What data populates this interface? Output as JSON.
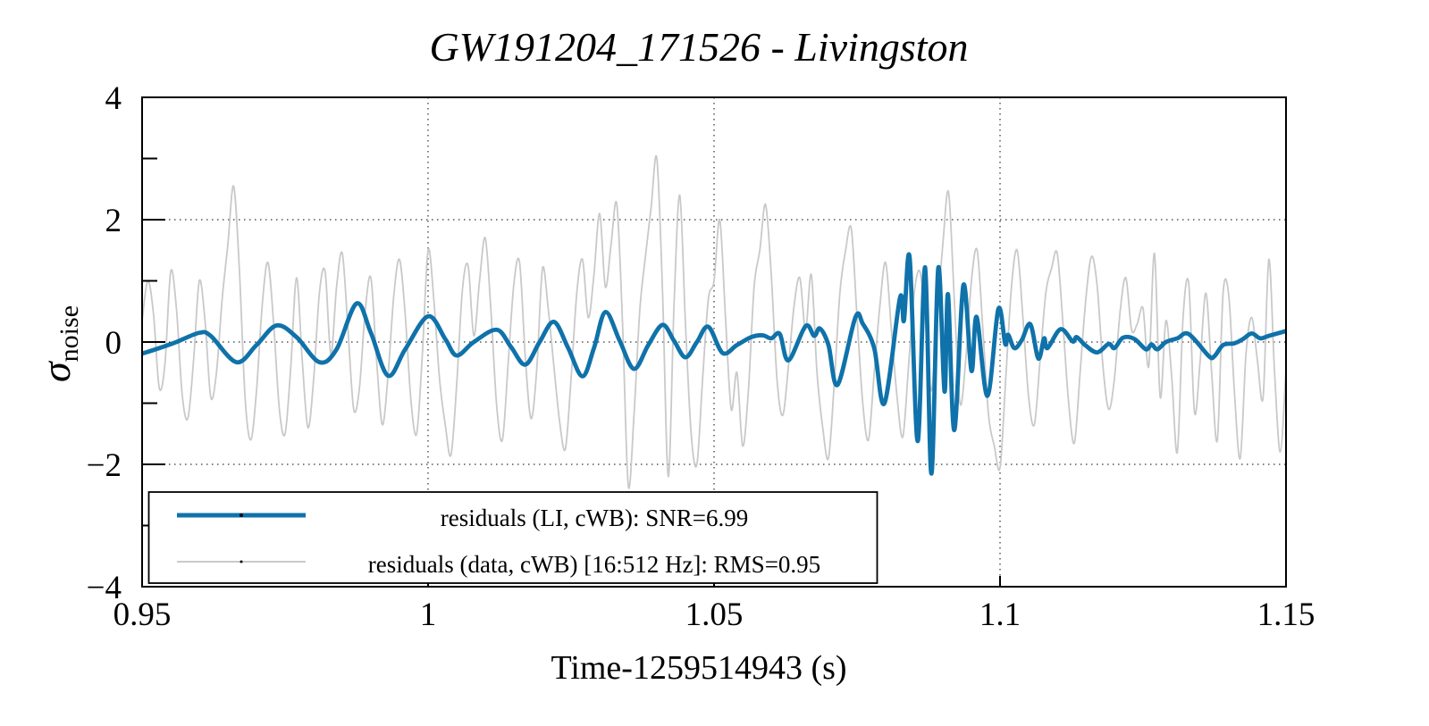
{
  "title": "GW191204_171526 - Livingston",
  "colors": {
    "signal_blue": "#0f72aa",
    "noise_gray": "#c9c9c9",
    "axis_black": "#000000",
    "background": "#ffffff"
  },
  "chart_data": {
    "type": "line",
    "title": "GW191204_171526 - Livingston",
    "xlabel": "Time-1259514943 (s)",
    "ylabel_sigma": "σ",
    "ylabel_sub": "noise",
    "xlim": [
      0.95,
      1.15
    ],
    "ylim": [
      -4,
      4
    ],
    "x_ticks": [
      0.95,
      1.0,
      1.05,
      1.1,
      1.15
    ],
    "x_tick_labels": [
      "0.95",
      "1",
      "1.05",
      "1.1",
      "1.15"
    ],
    "y_ticks": [
      -4,
      -2,
      0,
      2,
      4
    ],
    "y_tick_labels": [
      "−4",
      "−2",
      "0",
      "2",
      "4"
    ],
    "y_minor_ticks": [
      -3,
      -1,
      1,
      3
    ],
    "x_gridlines": [
      1.0,
      1.05,
      1.1
    ],
    "y_gridlines": [
      -2,
      0,
      2
    ],
    "grid_style": "dotted",
    "legend": {
      "position": "bottom-left",
      "entries": [
        {
          "label": "residuals (LI, cWB): SNR=6.99",
          "color": "#0f72aa",
          "line_width": 5
        },
        {
          "label": "residuals (data, cWB) [16:512 Hz]: RMS=0.95",
          "color": "#c9c9c9",
          "line_width": 2
        }
      ]
    },
    "series": [
      {
        "name": "residuals (LI, cWB): SNR=6.99",
        "style": "smooth",
        "points": [
          [
            0.95,
            -0.19
          ],
          [
            0.953,
            -0.1
          ],
          [
            0.956,
            0.0
          ],
          [
            0.96,
            0.15
          ],
          [
            0.962,
            0.1
          ],
          [
            0.9665,
            -0.33
          ],
          [
            0.97,
            -0.05
          ],
          [
            0.9735,
            0.27
          ],
          [
            0.977,
            0.08
          ],
          [
            0.981,
            -0.33
          ],
          [
            0.984,
            -0.12
          ],
          [
            0.9875,
            0.63
          ],
          [
            0.99,
            0.15
          ],
          [
            0.993,
            -0.55
          ],
          [
            0.996,
            -0.12
          ],
          [
            1.0,
            0.42
          ],
          [
            1.003,
            0.05
          ],
          [
            1.005,
            -0.22
          ],
          [
            1.008,
            0.0
          ],
          [
            1.012,
            0.2
          ],
          [
            1.0145,
            -0.08
          ],
          [
            1.017,
            -0.37
          ],
          [
            1.0195,
            0.0
          ],
          [
            1.022,
            0.33
          ],
          [
            1.0245,
            -0.1
          ],
          [
            1.027,
            -0.56
          ],
          [
            1.029,
            -0.1
          ],
          [
            1.031,
            0.49
          ],
          [
            1.0335,
            0.02
          ],
          [
            1.036,
            -0.44
          ],
          [
            1.0385,
            -0.05
          ],
          [
            1.041,
            0.28
          ],
          [
            1.043,
            0.02
          ],
          [
            1.045,
            -0.25
          ],
          [
            1.047,
            0.0
          ],
          [
            1.049,
            0.25
          ],
          [
            1.0515,
            -0.18
          ],
          [
            1.054,
            -0.05
          ],
          [
            1.0565,
            0.08
          ],
          [
            1.0585,
            0.11
          ],
          [
            1.06,
            0.06
          ],
          [
            1.0615,
            0.13
          ],
          [
            1.063,
            -0.3
          ],
          [
            1.066,
            0.26
          ],
          [
            1.0675,
            0.1
          ],
          [
            1.0685,
            0.22
          ],
          [
            1.07,
            -0.05
          ],
          [
            1.0716,
            -0.7
          ],
          [
            1.0747,
            0.4
          ],
          [
            1.076,
            0.3
          ],
          [
            1.078,
            -0.1
          ],
          [
            1.0798,
            -1.0
          ],
          [
            1.0825,
            0.72
          ],
          [
            1.0832,
            0.35
          ],
          [
            1.0842,
            1.38
          ],
          [
            1.0856,
            -1.62
          ],
          [
            1.0869,
            1.22
          ],
          [
            1.088,
            -2.15
          ],
          [
            1.0892,
            1.21
          ],
          [
            1.0903,
            -0.81
          ],
          [
            1.0909,
            0.78
          ],
          [
            1.092,
            -1.44
          ],
          [
            1.0936,
            0.93
          ],
          [
            1.095,
            -0.47
          ],
          [
            1.0959,
            0.41
          ],
          [
            1.0978,
            -0.88
          ],
          [
            1.0997,
            0.54
          ],
          [
            1.1009,
            -0.03
          ],
          [
            1.1014,
            0.12
          ],
          [
            1.1025,
            -0.1
          ],
          [
            1.1038,
            0.03
          ],
          [
            1.1053,
            0.29
          ],
          [
            1.1067,
            -0.27
          ],
          [
            1.1077,
            0.06
          ],
          [
            1.1083,
            -0.1
          ],
          [
            1.1106,
            0.21
          ],
          [
            1.1127,
            0.01
          ],
          [
            1.1134,
            0.08
          ],
          [
            1.115,
            -0.06
          ],
          [
            1.117,
            -0.17
          ],
          [
            1.119,
            -0.03
          ],
          [
            1.12,
            -0.1
          ],
          [
            1.1215,
            0.07
          ],
          [
            1.1235,
            0.05
          ],
          [
            1.1255,
            -0.12
          ],
          [
            1.1265,
            -0.04
          ],
          [
            1.1275,
            -0.12
          ],
          [
            1.129,
            0.0
          ],
          [
            1.131,
            0.06
          ],
          [
            1.133,
            0.13
          ],
          [
            1.1365,
            -0.23
          ],
          [
            1.1375,
            -0.23
          ],
          [
            1.139,
            -0.05
          ],
          [
            1.141,
            -0.02
          ],
          [
            1.1425,
            0.05
          ],
          [
            1.144,
            0.14
          ],
          [
            1.1455,
            0.06
          ],
          [
            1.147,
            0.1
          ],
          [
            1.15,
            0.18
          ]
        ]
      },
      {
        "name": "residuals (data, cWB) [16:512 Hz]: RMS=0.95",
        "style": "smooth",
        "t_start": 0.95,
        "dt": 0.001,
        "values": [
          0.35,
          1.0,
          0.45,
          -0.75,
          -0.35,
          1.15,
          0.55,
          -0.85,
          -1.25,
          -0.3,
          1.0,
          0.35,
          -0.9,
          -0.5,
          0.7,
          1.6,
          2.55,
          1.2,
          -0.9,
          -1.6,
          -0.8,
          0.6,
          1.3,
          0.3,
          -1.1,
          -1.5,
          -0.4,
          1.05,
          -0.3,
          -1.4,
          -0.6,
          0.8,
          1.15,
          -0.2,
          0.9,
          1.45,
          0.2,
          -1.1,
          -0.75,
          0.5,
          1.05,
          -0.3,
          -1.35,
          -0.55,
          0.75,
          1.35,
          0.45,
          -0.95,
          -1.5,
          -0.2,
          1.5,
          0.7,
          -0.6,
          -1.35,
          -1.85,
          -0.7,
          0.85,
          1.25,
          0.1,
          1.0,
          1.7,
          0.5,
          -1.05,
          -1.6,
          -0.35,
          0.95,
          1.3,
          -0.25,
          -1.25,
          -0.45,
          1.2,
          0.55,
          -0.4,
          -1.3,
          -1.75,
          -0.6,
          0.8,
          1.35,
          0.4,
          1.1,
          2.1,
          0.9,
          1.6,
          2.25,
          0.3,
          -2.35,
          -1.2,
          0.5,
          1.4,
          2.2,
          3.0,
          0.8,
          -2.2,
          0.6,
          2.4,
          0.3,
          -1.5,
          -2.0,
          -0.6,
          0.7,
          1.0,
          2.0,
          0.4,
          -1.1,
          -0.5,
          -1.7,
          -0.8,
          0.9,
          1.5,
          2.25,
          1.1,
          -0.6,
          -1.2,
          -0.4,
          0.6,
          1.05,
          0.2,
          1.1,
          -0.5,
          -1.4,
          -1.9,
          -0.7,
          0.8,
          1.5,
          1.85,
          0.4,
          -1.0,
          -1.6,
          -0.5,
          0.6,
          1.3,
          0.2,
          -0.9,
          -1.55,
          -0.4,
          0.8,
          1.15,
          0.3,
          -0.8,
          0.5,
          1.6,
          2.45,
          0.7,
          -1.0,
          -0.3,
          1.0,
          1.5,
          0.2,
          -1.2,
          -1.7,
          -2.05,
          -0.6,
          0.9,
          1.5,
          0.4,
          -0.9,
          -1.35,
          -0.3,
          0.8,
          1.2,
          1.45,
          0.3,
          -1.0,
          -1.65,
          -0.5,
          0.7,
          1.4,
          0.9,
          -0.4,
          -1.1,
          -0.6,
          0.5,
          1.05,
          0.2,
          0.3,
          0.55,
          -0.4,
          1.45,
          -0.9,
          0.35,
          -0.55,
          -1.8,
          0.4,
          0.95,
          -1.15,
          -0.3,
          0.8,
          -0.5,
          -1.6,
          0.8,
          0.75,
          -0.85,
          -1.9,
          -0.2,
          0.4,
          -0.3,
          -0.9,
          1.35,
          -0.5,
          -1.8,
          -0.45
        ]
      }
    ]
  }
}
